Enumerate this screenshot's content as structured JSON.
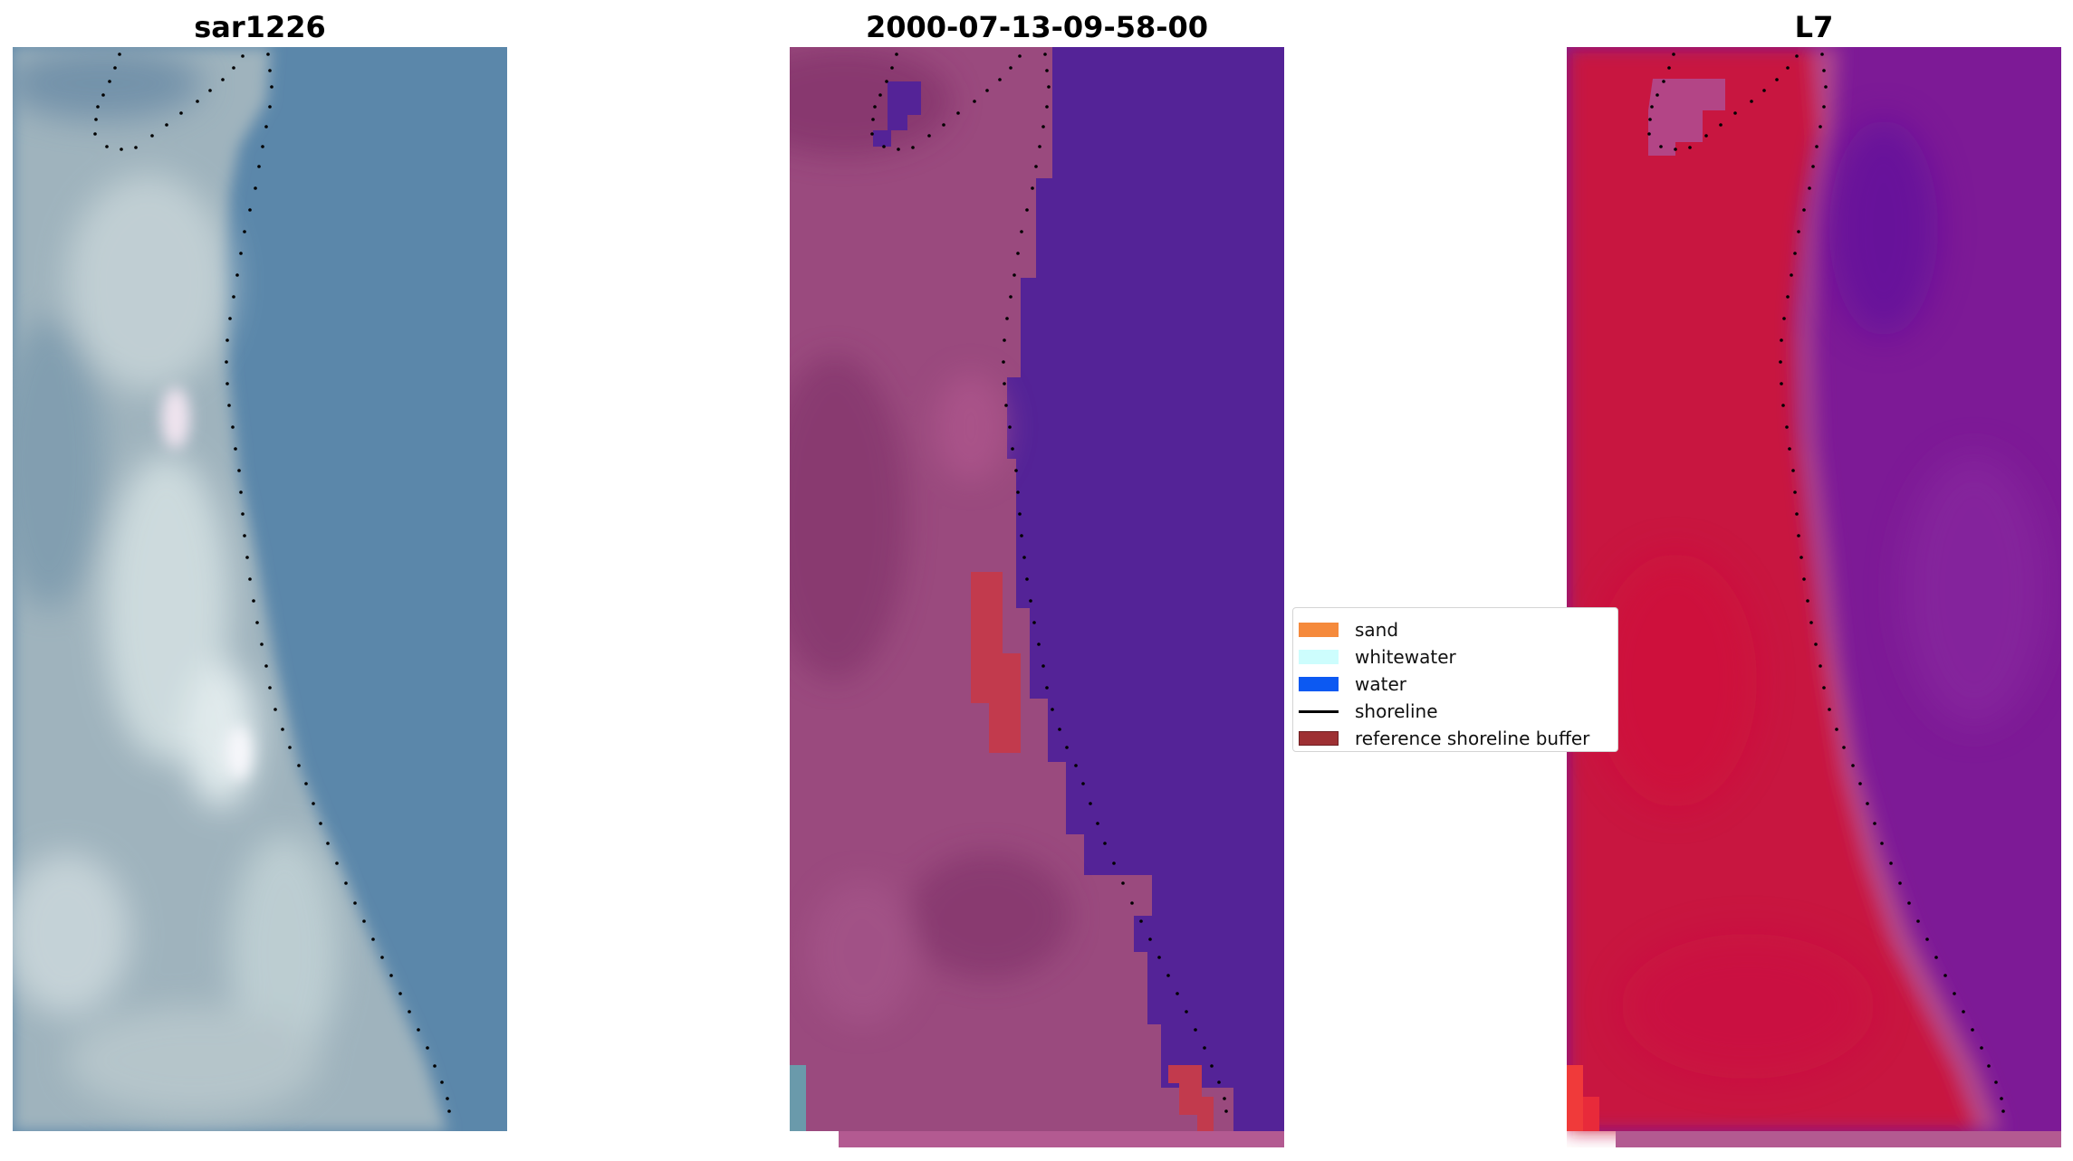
{
  "panels": [
    {
      "title": "sar1226"
    },
    {
      "title": "2000-07-13-09-58-00"
    },
    {
      "title": "L7"
    }
  ],
  "legend": {
    "items": [
      {
        "label": "sand",
        "color": "#f58a3c",
        "kind": "patch"
      },
      {
        "label": "whitewater",
        "color": "#cdfdfd",
        "kind": "patch"
      },
      {
        "label": "water",
        "color": "#0c59f2",
        "kind": "patch"
      },
      {
        "label": "shoreline",
        "color": "#000000",
        "kind": "line"
      },
      {
        "label": "reference shoreline buffer",
        "color": "#9e3033",
        "kind": "patch"
      }
    ]
  },
  "colors": {
    "rgb_water": "#5b87aa",
    "rgb_land": "#a9bcc4",
    "rgb_whitewater": "#e9f2f3",
    "overlay_land": "#9a4a7e",
    "overlay_water": "#542397",
    "overlay_buffer": "#c23a4d",
    "nir_land": "#c8143f",
    "nir_water": "#7d1a96"
  }
}
